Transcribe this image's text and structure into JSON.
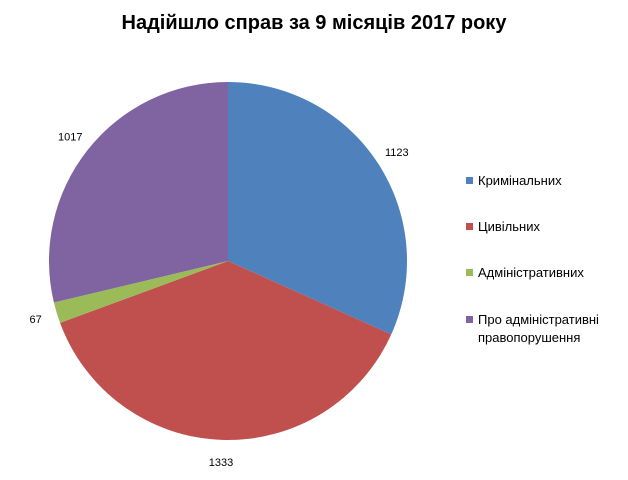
{
  "chart_data": {
    "type": "pie",
    "title": "Надійшло справ за 9 місяців 2017 року",
    "categories": [
      "Кримінальних",
      "Цивільних",
      "Адміністративних",
      "Про адміністративні правопорушення"
    ],
    "values": [
      1123,
      1333,
      67,
      1017
    ],
    "colors": [
      "#4f81bd",
      "#c0504d",
      "#9bbb59",
      "#8064a2"
    ],
    "legend_position": "right",
    "start_angle": "12 o'clock",
    "direction": "clockwise"
  }
}
